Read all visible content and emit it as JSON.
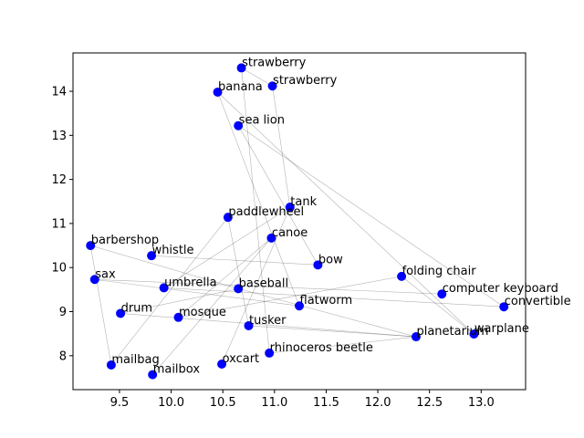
{
  "chart_data": {
    "type": "scatter",
    "title": "",
    "xlabel": "",
    "ylabel": "",
    "xlim": [
      9.05,
      13.43
    ],
    "ylim": [
      7.23,
      14.87
    ],
    "xticks": [
      9.5,
      10.0,
      10.5,
      11.0,
      11.5,
      12.0,
      12.5,
      13.0
    ],
    "yticks": [
      8,
      9,
      10,
      11,
      12,
      13,
      14
    ],
    "xtick_labels": [
      "9.5",
      "10.0",
      "10.5",
      "11.0",
      "11.5",
      "12.0",
      "12.5",
      "13.0"
    ],
    "ytick_labels": [
      "8",
      "9",
      "10",
      "11",
      "12",
      "13",
      "14"
    ],
    "grid": false,
    "legend": "none",
    "point_color": "#0000ff",
    "edge_color": "#000000",
    "points": [
      {
        "label": "strawberry",
        "x": 10.68,
        "y": 14.53
      },
      {
        "label": "strawberry",
        "x": 10.98,
        "y": 14.12
      },
      {
        "label": "banana",
        "x": 10.45,
        "y": 13.98
      },
      {
        "label": "sea lion",
        "x": 10.65,
        "y": 13.22
      },
      {
        "label": "tank",
        "x": 11.15,
        "y": 11.37
      },
      {
        "label": "paddlewheel",
        "x": 10.55,
        "y": 11.14
      },
      {
        "label": "canoe",
        "x": 10.97,
        "y": 10.67
      },
      {
        "label": "barbershop",
        "x": 9.22,
        "y": 10.5
      },
      {
        "label": "whistle",
        "x": 9.81,
        "y": 10.27
      },
      {
        "label": "bow",
        "x": 11.42,
        "y": 10.06
      },
      {
        "label": "folding chair",
        "x": 12.23,
        "y": 9.8
      },
      {
        "label": "sax",
        "x": 9.26,
        "y": 9.73
      },
      {
        "label": "umbrella",
        "x": 9.93,
        "y": 9.54
      },
      {
        "label": "baseball",
        "x": 10.65,
        "y": 9.52
      },
      {
        "label": "computer keyboard",
        "x": 12.62,
        "y": 9.4
      },
      {
        "label": "convertible",
        "x": 13.22,
        "y": 9.11
      },
      {
        "label": "flatworm",
        "x": 11.24,
        "y": 9.13
      },
      {
        "label": "drum",
        "x": 9.51,
        "y": 8.96
      },
      {
        "label": "mosque",
        "x": 10.07,
        "y": 8.87
      },
      {
        "label": "tusker",
        "x": 10.75,
        "y": 8.68
      },
      {
        "label": "warplane",
        "x": 12.93,
        "y": 8.49
      },
      {
        "label": "planetarium",
        "x": 12.37,
        "y": 8.43
      },
      {
        "label": "rhinoceros beetle",
        "x": 10.95,
        "y": 8.06
      },
      {
        "label": "mailbag",
        "x": 9.42,
        "y": 7.79
      },
      {
        "label": "oxcart",
        "x": 10.49,
        "y": 7.81
      },
      {
        "label": "mailbox",
        "x": 9.82,
        "y": 7.57
      }
    ],
    "edges": [
      [
        0,
        1
      ],
      [
        0,
        22
      ],
      [
        2,
        16
      ],
      [
        2,
        20
      ],
      [
        3,
        15
      ],
      [
        3,
        9
      ],
      [
        1,
        4
      ],
      [
        4,
        24
      ],
      [
        4,
        12
      ],
      [
        5,
        23
      ],
      [
        5,
        19
      ],
      [
        6,
        25
      ],
      [
        6,
        18
      ],
      [
        7,
        13
      ],
      [
        7,
        23
      ],
      [
        8,
        9
      ],
      [
        11,
        16
      ],
      [
        11,
        14
      ],
      [
        12,
        15
      ],
      [
        10,
        18
      ],
      [
        10,
        20
      ],
      [
        17,
        21
      ],
      [
        19,
        21
      ],
      [
        22,
        21
      ],
      [
        13,
        21
      ],
      [
        17,
        13
      ]
    ]
  }
}
